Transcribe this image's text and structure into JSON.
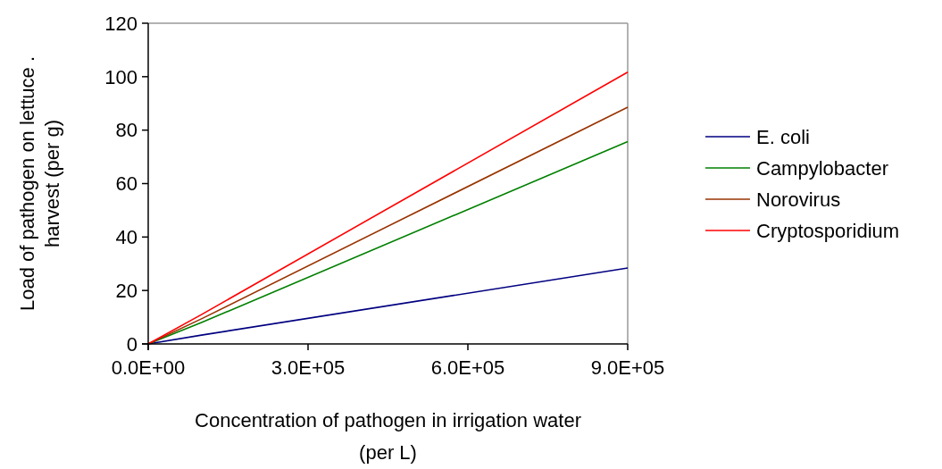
{
  "chart_data": {
    "type": "line",
    "xlabel": "Concentration of pathogen in irrigation water\n(per L)",
    "ylabel": "Load of pathogen on lettuce .\nharvest (per g)",
    "x": [
      0,
      100000,
      900000
    ],
    "series": [
      {
        "name": "E. coli",
        "color": "#000080",
        "values": [
          0,
          3.3,
          28.4
        ]
      },
      {
        "name": "Campylobacter",
        "color": "#008000",
        "values": [
          0,
          8,
          75.7
        ]
      },
      {
        "name": "Norovirus",
        "color": "#993300",
        "values": [
          0,
          9.4,
          88.6
        ]
      },
      {
        "name": "Cryptosporidium",
        "color": "#ff0000",
        "values": [
          0,
          11,
          101.7
        ]
      }
    ],
    "xlim": [
      0,
      900000
    ],
    "xticks": [
      {
        "value": 0,
        "label": "0.0E+00"
      },
      {
        "value": 300000,
        "label": "3.0E+05"
      },
      {
        "value": 600000,
        "label": "6.0E+05"
      },
      {
        "value": 900000,
        "label": "9.0E+05"
      }
    ],
    "ylim": [
      0,
      120
    ],
    "yticks": [
      0,
      20,
      40,
      60,
      80,
      100,
      120
    ],
    "legend": "right",
    "grid": false,
    "marker": "none",
    "line_style": "solid"
  }
}
